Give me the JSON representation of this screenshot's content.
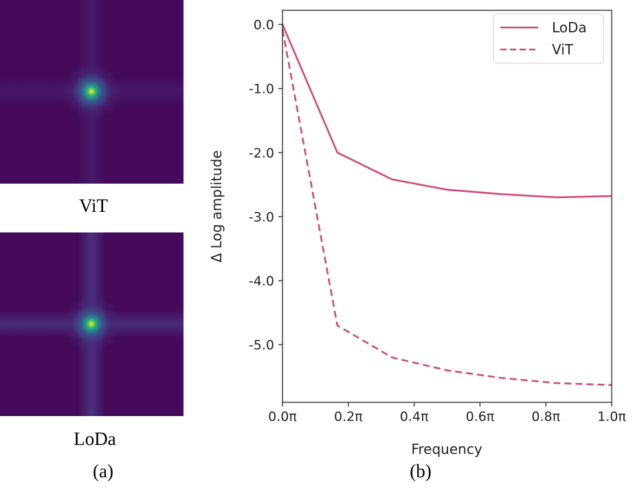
{
  "panel_a": {
    "top_label": "ViT",
    "bottom_label": "LoDa",
    "caption": "(a)"
  },
  "panel_b": {
    "caption": "(b)"
  },
  "chart_data": {
    "type": "line",
    "xlabel": "Frequency",
    "ylabel": "Δ Log amplitude",
    "x": [
      0,
      0.1667,
      0.3333,
      0.5,
      0.6667,
      0.8333,
      1.0
    ],
    "xticks": [
      "0.0π",
      "0.2π",
      "0.4π",
      "0.6π",
      "0.8π",
      "1.0π"
    ],
    "xtick_values": [
      0,
      0.2,
      0.4,
      0.6,
      0.8,
      1.0
    ],
    "yticks": [
      "0.0",
      "-1.0",
      "-2.0",
      "-3.0",
      "-4.0",
      "-5.0"
    ],
    "ytick_values": [
      0,
      -1,
      -2,
      -3,
      -4,
      -5
    ],
    "xlim": [
      0,
      1.0
    ],
    "ylim": [
      -5.9,
      0.22
    ],
    "grid": false,
    "legend": "top-right",
    "series": [
      {
        "name": "LoDa",
        "style": "solid",
        "color": "#d1497c",
        "values": [
          0,
          -2.0,
          -2.42,
          -2.58,
          -2.65,
          -2.7,
          -2.68
        ]
      },
      {
        "name": "ViT",
        "style": "dashed",
        "color": "#d1497c",
        "values": [
          -0.08,
          -4.7,
          -5.2,
          -5.4,
          -5.52,
          -5.6,
          -5.63
        ]
      }
    ]
  }
}
